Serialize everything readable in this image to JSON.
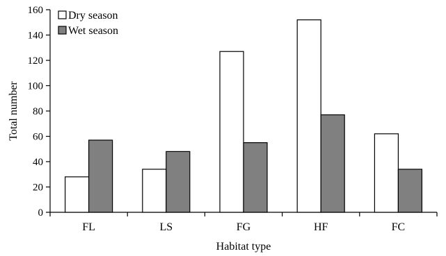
{
  "chart_data": {
    "type": "bar",
    "title": "",
    "xlabel": "Habitat type",
    "ylabel": "Total number",
    "categories": [
      "FL",
      "LS",
      "FG",
      "HF",
      "FC"
    ],
    "series": [
      {
        "name": "Dry season",
        "values": [
          28,
          34,
          127,
          152,
          62
        ],
        "color": "#ffffff"
      },
      {
        "name": "Wet season",
        "values": [
          57,
          48,
          55,
          77,
          34
        ],
        "color": "#808080"
      }
    ],
    "ylim": [
      0,
      160
    ],
    "yticks": [
      0,
      20,
      40,
      60,
      80,
      100,
      120,
      140,
      160
    ],
    "grid": false,
    "legend": "top-left",
    "bar_outline_color": "#000000"
  }
}
